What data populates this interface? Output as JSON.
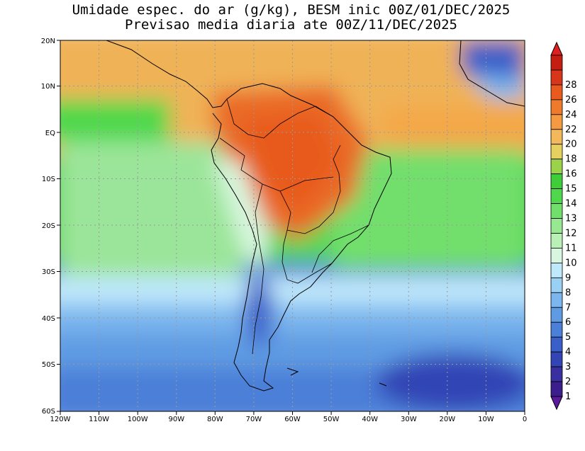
{
  "title": {
    "line1": "Umidade espec. do ar (g/kg), BESM inic 00Z/01/DEC/2025",
    "line2": "Previsao media diaria ate 00Z/11/DEC/2025"
  },
  "map": {
    "lat_labels": [
      "20N",
      "10N",
      "EQ",
      "10S",
      "20S",
      "30S",
      "40S",
      "50S",
      "60S"
    ],
    "lon_labels": [
      "120W",
      "110W",
      "100W",
      "90W",
      "80W",
      "70W",
      "60W",
      "50W",
      "40W",
      "30W",
      "20W",
      "10W",
      "0"
    ]
  },
  "colorbar": {
    "labels": [
      "1",
      "2",
      "3",
      "4",
      "5",
      "6",
      "7",
      "8",
      "9",
      "10",
      "11",
      "12",
      "13",
      "14",
      "15",
      "16",
      "18",
      "20",
      "22",
      "24",
      "26",
      "28"
    ],
    "colors": [
      "#3b1e8c",
      "#3a2fa0",
      "#3345b5",
      "#3a5fc9",
      "#4c7fd8",
      "#5f9be3",
      "#7bb6ee",
      "#9bd0f5",
      "#bfe8fb",
      "#d9f7e0",
      "#b9f0b6",
      "#97e891",
      "#72df6c",
      "#50d84c",
      "#3fce3a",
      "#9bd24a",
      "#e6d060",
      "#f2b85a",
      "#f49a40",
      "#ef7a2c",
      "#e85a1e",
      "#d8361a",
      "#c41e12"
    ],
    "tri_low_color": "#5b1a9c",
    "tri_high_color": "#e02020"
  }
}
